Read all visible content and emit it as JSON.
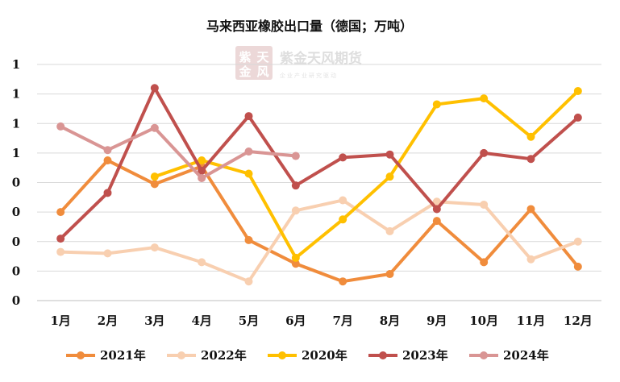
{
  "chart_data": {
    "type": "line",
    "title": "马来西亚橡胶出口量（德国；万吨）",
    "categories": [
      "1月",
      "2月",
      "3月",
      "4月",
      "5月",
      "6月",
      "7月",
      "8月",
      "9月",
      "10月",
      "11月",
      "12月"
    ],
    "y_tick_labels": [
      "0",
      "0",
      "0",
      "0",
      "0",
      "1",
      "1",
      "1",
      "1"
    ],
    "ylim": [
      0,
      1.6
    ],
    "grid": true,
    "legend_position": "bottom",
    "series": [
      {
        "name": "2021年",
        "color": "#f08c3c",
        "values": [
          0.6,
          0.95,
          0.79,
          0.91,
          0.41,
          0.25,
          0.13,
          0.18,
          0.54,
          0.26,
          0.62,
          0.23
        ]
      },
      {
        "name": "2022年",
        "color": "#f8cfb0",
        "values": [
          0.33,
          0.32,
          0.36,
          0.26,
          0.13,
          0.61,
          0.68,
          0.47,
          0.67,
          0.65,
          0.28,
          0.4
        ]
      },
      {
        "name": "2020年",
        "color": "#ffc000",
        "values": [
          null,
          null,
          0.84,
          0.95,
          0.86,
          0.29,
          0.55,
          0.84,
          1.33,
          1.37,
          1.11,
          1.42
        ]
      },
      {
        "name": "2023年",
        "color": "#c0504d",
        "values": [
          0.42,
          0.73,
          1.44,
          0.88,
          1.25,
          0.78,
          0.97,
          0.99,
          0.62,
          1.0,
          0.96,
          1.24
        ]
      },
      {
        "name": "2024年",
        "color": "#d99594",
        "values": [
          1.18,
          1.02,
          1.17,
          0.83,
          1.01,
          0.98,
          null,
          null,
          null,
          null,
          null,
          null
        ]
      }
    ]
  },
  "watermark": {
    "seal_chars": [
      "紫",
      "天",
      "金",
      "风"
    ],
    "name": "紫金天风期货",
    "subtitle": "企业产业研究驱动"
  }
}
